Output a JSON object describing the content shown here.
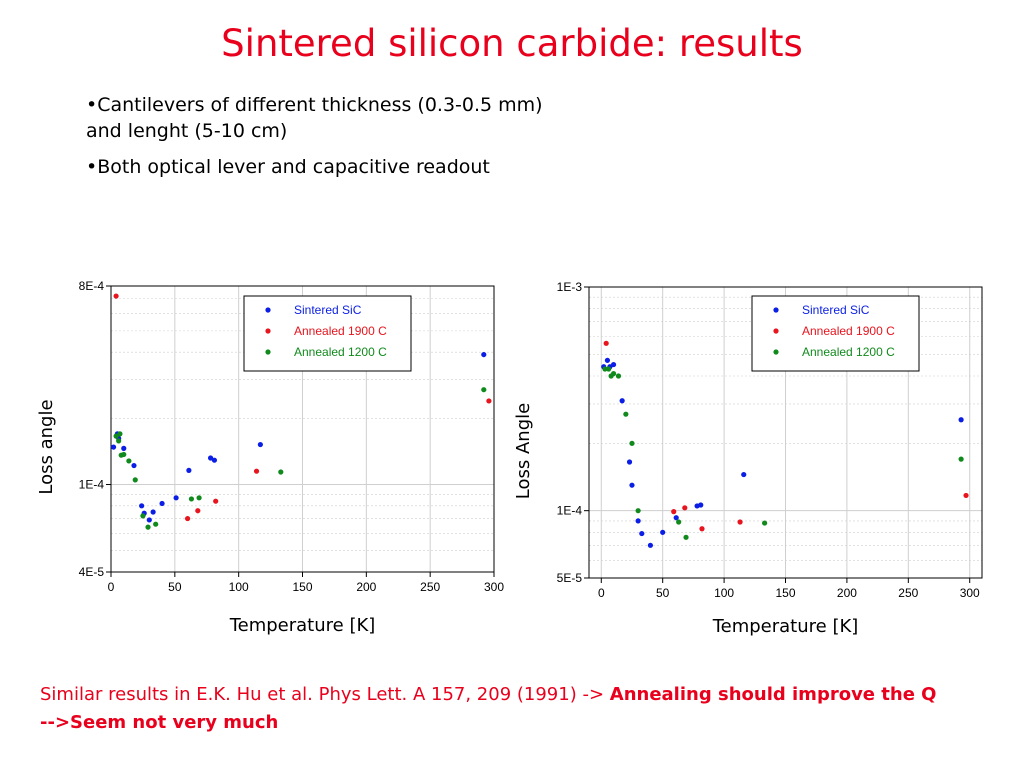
{
  "slide": {
    "title": "Sintered silicon carbide: results",
    "bullets": [
      "•Cantilevers of different thickness (0.3-0.5 mm) and lenght (5-10 cm)",
      "•Both optical lever and capacitive readout"
    ],
    "footnote_plain": "Similar results in E.K. Hu et al.   Phys Lett. A 157, 209 (1991) -> ",
    "footnote_bold": "Annealing should improve the Q -->Seem not very much"
  },
  "colors": {
    "title": "#e8001c",
    "blue": "#0a1ee6",
    "red": "#e8141e",
    "green": "#108a1c",
    "grid": "#cfcfcf"
  },
  "chart_data": [
    {
      "type": "scatter",
      "xlabel": "Temperature  [K]",
      "ylabel": "Loss angle",
      "xlim": [
        0,
        300
      ],
      "ylim": [
        4e-05,
        0.0008
      ],
      "yscale": "log",
      "xticks": [
        0,
        50,
        100,
        150,
        200,
        250,
        300
      ],
      "yticks": [
        {
          "value": 4e-05,
          "label": "4E-5"
        },
        {
          "value": 0.0001,
          "label": "1E-4"
        },
        {
          "value": 0.0008,
          "label": "8E-4"
        }
      ],
      "legend_position": "top-right",
      "series": [
        {
          "name": "Sintered SiC",
          "color": "#0a1ee6",
          "points": [
            [
              2,
              0.000148
            ],
            [
              5,
              0.00017
            ],
            [
              6,
              0.000162
            ],
            [
              10,
              0.000146
            ],
            [
              18,
              0.000122
            ],
            [
              24,
              8e-05
            ],
            [
              26,
              7.4e-05
            ],
            [
              30,
              6.9e-05
            ],
            [
              33,
              7.5e-05
            ],
            [
              40,
              8.2e-05
            ],
            [
              51,
              8.7e-05
            ],
            [
              61,
              0.000116
            ],
            [
              78,
              0.000132
            ],
            [
              81,
              0.000129
            ],
            [
              117,
              0.000152
            ],
            [
              292,
              0.00039
            ]
          ]
        },
        {
          "name": "Annealed 1900 C",
          "color": "#e8141e",
          "points": [
            [
              4,
              0.00072
            ],
            [
              60,
              7e-05
            ],
            [
              68,
              7.6e-05
            ],
            [
              82,
              8.4e-05
            ],
            [
              114,
              0.000115
            ],
            [
              296,
              0.00024
            ]
          ]
        },
        {
          "name": "Annealed 1200 C",
          "color": "#108a1c",
          "points": [
            [
              4,
              0.000166
            ],
            [
              6,
              0.000158
            ],
            [
              7,
              0.00017
            ],
            [
              8,
              0.000136
            ],
            [
              10,
              0.000137
            ],
            [
              14,
              0.000128
            ],
            [
              19,
              0.000105
            ],
            [
              25,
              7.2e-05
            ],
            [
              29,
              6.4e-05
            ],
            [
              35,
              6.6e-05
            ],
            [
              63,
              8.6e-05
            ],
            [
              69,
              8.7e-05
            ],
            [
              133,
              0.000114
            ],
            [
              292,
              0.00027
            ]
          ]
        }
      ]
    },
    {
      "type": "scatter",
      "xlabel": "Temperature  [K]",
      "ylabel": "Loss Angle",
      "xlim": [
        -10,
        310
      ],
      "ylim": [
        5e-05,
        0.001
      ],
      "yscale": "log",
      "xticks": [
        0,
        50,
        100,
        150,
        200,
        250,
        300
      ],
      "yticks": [
        {
          "value": 5e-05,
          "label": "5E-5"
        },
        {
          "value": 0.0001,
          "label": "1E-4"
        },
        {
          "value": 0.001,
          "label": "1E-3"
        }
      ],
      "legend_position": "top-right",
      "series": [
        {
          "name": "Sintered SiC",
          "color": "#0a1ee6",
          "points": [
            [
              2,
              0.00044
            ],
            [
              5,
              0.00047
            ],
            [
              7,
              0.00044
            ],
            [
              10,
              0.00045
            ],
            [
              17,
              0.00031
            ],
            [
              23,
              0.000165
            ],
            [
              25,
              0.00013
            ],
            [
              30,
              9e-05
            ],
            [
              33,
              7.9e-05
            ],
            [
              40,
              7e-05
            ],
            [
              50,
              8e-05
            ],
            [
              61,
              9.3e-05
            ],
            [
              78,
              0.000105
            ],
            [
              81,
              0.000106
            ],
            [
              116,
              0.000145
            ],
            [
              293,
              0.000255
            ]
          ]
        },
        {
          "name": "Annealed 1900 C",
          "color": "#e8141e",
          "points": [
            [
              4,
              0.00056
            ],
            [
              59,
              9.9e-05
            ],
            [
              68,
              0.000103
            ],
            [
              82,
              8.3e-05
            ],
            [
              113,
              8.9e-05
            ],
            [
              297,
              0.000117
            ]
          ]
        },
        {
          "name": "Annealed 1200 C",
          "color": "#108a1c",
          "points": [
            [
              3,
              0.00043
            ],
            [
              6,
              0.00043
            ],
            [
              8,
              0.0004
            ],
            [
              10,
              0.00041
            ],
            [
              14,
              0.0004
            ],
            [
              20,
              0.00027
            ],
            [
              25,
              0.0002
            ],
            [
              30,
              0.0001
            ],
            [
              63,
              8.9e-05
            ],
            [
              69,
              7.6e-05
            ],
            [
              133,
              8.8e-05
            ],
            [
              293,
              0.00017
            ]
          ]
        }
      ]
    }
  ]
}
